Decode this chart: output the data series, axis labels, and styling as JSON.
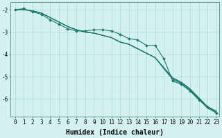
{
  "xlabel": "Humidex (Indice chaleur)",
  "bg_color": "#d4f0f0",
  "grid_color": "#aad8d8",
  "line_color": "#1a7a6e",
  "xlim": [
    -0.5,
    23.3
  ],
  "ylim": [
    -6.8,
    -1.65
  ],
  "yticks": [
    -2,
    -3,
    -4,
    -5,
    -6
  ],
  "xticks": [
    0,
    1,
    2,
    3,
    4,
    5,
    6,
    7,
    8,
    9,
    10,
    11,
    12,
    13,
    14,
    15,
    16,
    17,
    18,
    19,
    20,
    21,
    22,
    23
  ],
  "smooth_lines": [
    [
      -2.0,
      -2.0,
      -2.05,
      -2.15,
      -2.35,
      -2.55,
      -2.75,
      -2.9,
      -3.0,
      -3.05,
      -3.15,
      -3.25,
      -3.45,
      -3.55,
      -3.75,
      -3.95,
      -4.15,
      -4.6,
      -5.05,
      -5.25,
      -5.55,
      -5.95,
      -6.35,
      -6.55
    ],
    [
      -2.0,
      -2.0,
      -2.05,
      -2.15,
      -2.35,
      -2.55,
      -2.75,
      -2.9,
      -3.0,
      -3.05,
      -3.15,
      -3.25,
      -3.45,
      -3.55,
      -3.75,
      -3.95,
      -4.15,
      -4.62,
      -5.08,
      -5.28,
      -5.58,
      -5.98,
      -6.38,
      -6.58
    ],
    [
      -2.0,
      -2.0,
      -2.05,
      -2.15,
      -2.35,
      -2.55,
      -2.75,
      -2.9,
      -3.0,
      -3.05,
      -3.15,
      -3.25,
      -3.45,
      -3.55,
      -3.75,
      -3.95,
      -4.15,
      -4.65,
      -5.12,
      -5.32,
      -5.62,
      -6.02,
      -6.42,
      -6.62
    ]
  ],
  "marker_line": [
    -2.0,
    -1.95,
    -2.1,
    -2.2,
    -2.45,
    -2.65,
    -2.85,
    -2.95,
    -2.95,
    -2.9,
    -2.9,
    -2.95,
    -3.1,
    -3.3,
    -3.35,
    -3.6,
    -3.6,
    -4.2,
    -5.2,
    -5.35,
    -5.65,
    -6.05,
    -6.35,
    -6.65
  ],
  "xlabel_fontsize": 7,
  "tick_fontsize": 5.5
}
